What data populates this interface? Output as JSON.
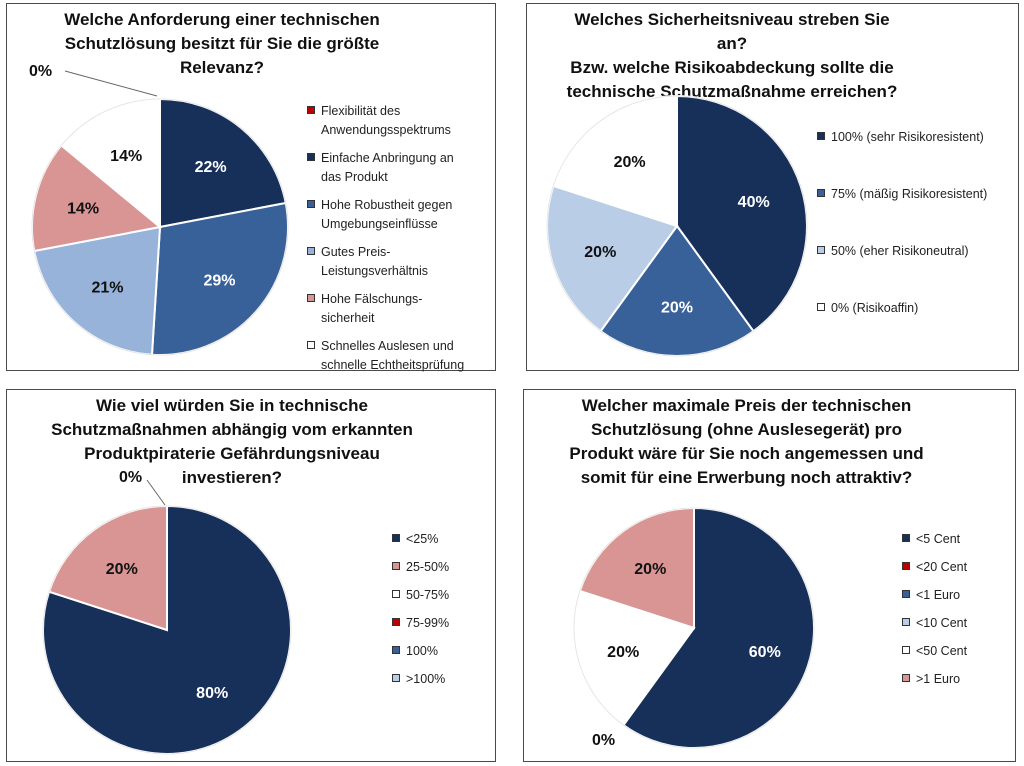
{
  "chart_data": [
    {
      "type": "pie",
      "title": "Welche Anforderung einer technischen Schutzlösung besitzt für Sie die größte Relevanz?",
      "title_lines": [
        "Welche Anforderung einer technischen",
        "Schutzlösung besitzt für Sie die größte",
        "Relevanz?"
      ],
      "slices": [
        {
          "label": "Flexibilität des Anwendungsspektrums",
          "label_lines": [
            "Flexibilität des",
            "Anwendungsspektrums"
          ],
          "value": 0,
          "display": "0%",
          "color": "#c00000"
        },
        {
          "label": "Einfache Anbringung an das Produkt",
          "label_lines": [
            "Einfache Anbringung an",
            "das Produkt"
          ],
          "value": 22,
          "display": "22%",
          "color": "#17305a"
        },
        {
          "label": "Hohe Robustheit gegen Umgebungseinflüsse",
          "label_lines": [
            "Hohe Robustheit gegen",
            "Umgebungseinflüsse"
          ],
          "value": 29,
          "display": "29%",
          "color": "#38619a"
        },
        {
          "label": "Gutes Preis-Leistungsverhältnis",
          "label_lines": [
            "Gutes Preis-",
            "Leistungsverhältnis"
          ],
          "value": 21,
          "display": "21%",
          "color": "#97b3d9"
        },
        {
          "label": "Hohe Fälschungssicherheit",
          "label_lines": [
            "Hohe Fälschungs-",
            "sicherheit"
          ],
          "value": 14,
          "display": "14%",
          "color": "#d99594"
        },
        {
          "label": "Schnelles Auslesen und schnelle Echtheitsprüfung",
          "label_lines": [
            "Schnelles Auslesen und",
            "schnelle Echtheitsprüfung"
          ],
          "value": 14,
          "display": "14%",
          "color": "#ffffff"
        }
      ],
      "legend_position": "right"
    },
    {
      "type": "pie",
      "title": "Welches Sicherheitsniveau streben Sie an? Bzw. welche Risikoabdeckung sollte die technische Schutzmaßnahme erreichen?",
      "title_lines": [
        "Welches Sicherheitsniveau streben Sie an?",
        "Bzw. welche Risikoabdeckung sollte die",
        "technische Schutzmaßnahme erreichen?"
      ],
      "slices": [
        {
          "label": "100% (sehr Risikoresistent)",
          "label_lines": [
            "100% (sehr Risikoresistent)"
          ],
          "value": 40,
          "display": "40%",
          "color": "#17305a"
        },
        {
          "label": "75% (mäßig Risikoresistent)",
          "label_lines": [
            "75% (mäßig Risikoresistent)"
          ],
          "value": 20,
          "display": "20%",
          "color": "#38619a"
        },
        {
          "label": "50% (eher Risikoneutral)",
          "label_lines": [
            "50% (eher Risikoneutral)"
          ],
          "value": 20,
          "display": "20%",
          "color": "#b9cde6"
        },
        {
          "label": "0% (Risikoaffin)",
          "label_lines": [
            "0% (Risikoaffin)"
          ],
          "value": 20,
          "display": "20%",
          "color": "#ffffff"
        }
      ],
      "legend_position": "right"
    },
    {
      "type": "pie",
      "title": "Wie viel würden Sie in technische Schutzmaßnahmen abhängig vom erkannten Produktpiraterie Gefährdungsniveau investieren?",
      "title_lines": [
        "Wie viel würden Sie in technische",
        "Schutzmaßnahmen abhängig vom erkannten",
        "Produktpiraterie Gefährdungsniveau",
        "investieren?"
      ],
      "slices": [
        {
          "label": "<25%",
          "label_lines": [
            "<25%"
          ],
          "value": 80,
          "display": "80%",
          "color": "#17305a"
        },
        {
          "label": "25-50%",
          "label_lines": [
            "25-50%"
          ],
          "value": 20,
          "display": "20%",
          "color": "#d99594"
        },
        {
          "label": "50-75%",
          "label_lines": [
            "50-75%"
          ],
          "value": 0,
          "display": "",
          "color": "#ffffff"
        },
        {
          "label": "75-99%",
          "label_lines": [
            "75-99%"
          ],
          "value": 0,
          "display": "",
          "color": "#c00000"
        },
        {
          "label": "100%",
          "label_lines": [
            "100%"
          ],
          "value": 0,
          "display": "",
          "color": "#38619a"
        },
        {
          "label": ">100%",
          "label_lines": [
            ">100%"
          ],
          "value": 0,
          "display": "",
          "color": "#b9cde6"
        }
      ],
      "zero_label": "0%",
      "legend_position": "right"
    },
    {
      "type": "pie",
      "title": "Welcher maximale Preis der technischen Schutzlösung (ohne Auslesegerät) pro Produkt wäre für Sie noch angemessen und somit für eine Erwerbung noch attraktiv?",
      "title_lines": [
        "Welcher maximale Preis der technischen",
        "Schutzlösung (ohne Auslesegerät) pro",
        "Produkt wäre für Sie noch angemessen und",
        "somit für eine Erwerbung noch attraktiv?"
      ],
      "slices": [
        {
          "label": "<5 Cent",
          "label_lines": [
            "<5 Cent"
          ],
          "value": 60,
          "display": "60%",
          "color": "#17305a"
        },
        {
          "label": "<20 Cent",
          "label_lines": [
            "<20 Cent"
          ],
          "value": 0,
          "display": "",
          "color": "#c00000"
        },
        {
          "label": "<1 Euro",
          "label_lines": [
            "<1 Euro"
          ],
          "value": 0,
          "display": "",
          "color": "#38619a"
        },
        {
          "label": "<10 Cent",
          "label_lines": [
            "<10 Cent"
          ],
          "value": 0,
          "display": "",
          "color": "#b9cde6"
        },
        {
          "label": "<50 Cent",
          "label_lines": [
            "<50 Cent"
          ],
          "value": 20,
          "display": "20%",
          "color": "#ffffff"
        },
        {
          "label": ">1 Euro",
          "label_lines": [
            ">1 Euro"
          ],
          "value": 20,
          "display": "20%",
          "color": "#d99594"
        }
      ],
      "zero_label": "0%",
      "legend_position": "right"
    }
  ]
}
